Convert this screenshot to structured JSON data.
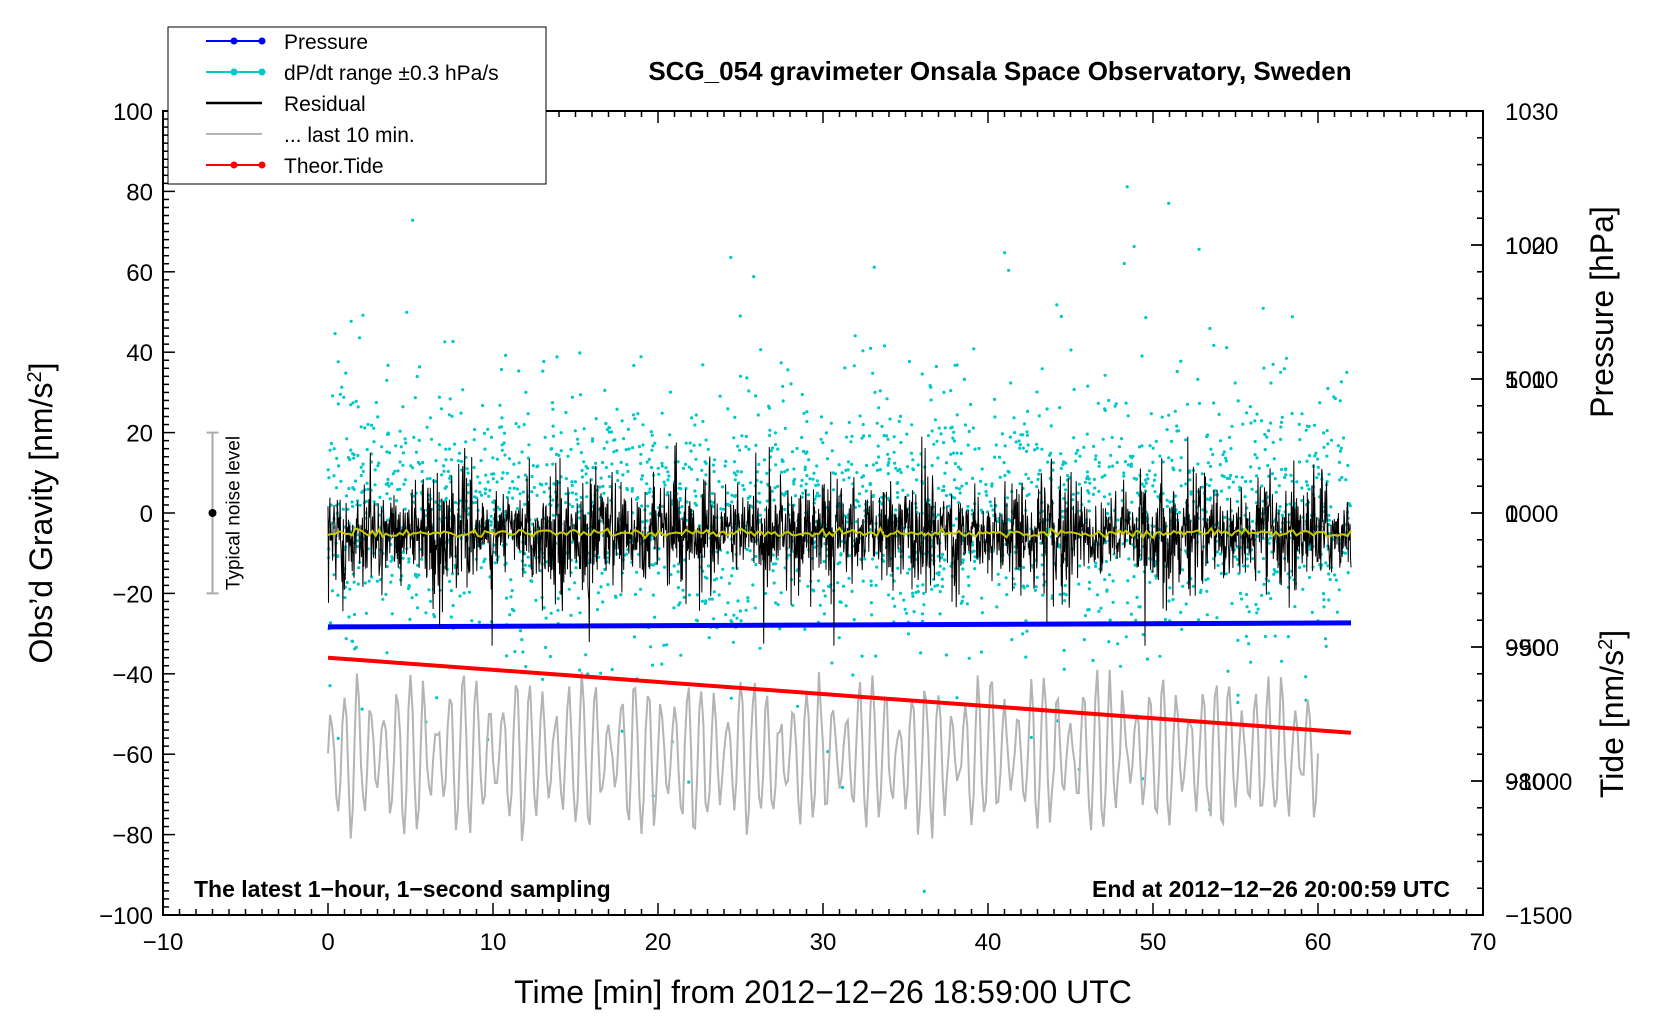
{
  "chart_data": {
    "type": "line",
    "title": "SCG_054 gravimeter Onsala Space Observatory, Sweden",
    "xlabel": "Time [min] from 2012−12−26 18:59:00 UTC",
    "ylabel_left_main": "Obs’d Gravity [nm/s",
    "ylabel_left_sup": "2",
    "ylabel_left_end": "]",
    "ylabel_right_top": "Pressure [hPa]",
    "ylabel_right_bottom_main": "Tide [nm/s",
    "ylabel_right_bottom_sup": "2",
    "ylabel_right_bottom_end": "]",
    "xlim": [
      -10,
      70
    ],
    "ylim": [
      -100,
      100
    ],
    "pressure_lim": [
      970,
      1030
    ],
    "tide_lim": [
      -1500,
      1500
    ],
    "x_ticks": [
      "−10",
      "0",
      "10",
      "20",
      "30",
      "40",
      "50",
      "60",
      "70"
    ],
    "x_tick_values": [
      -10,
      0,
      10,
      20,
      30,
      40,
      50,
      60,
      70
    ],
    "y_ticks": [
      "100",
      "80",
      "60",
      "40",
      "20",
      "0",
      "−20",
      "−40",
      "−60",
      "−80",
      "−100"
    ],
    "y_tick_values": [
      100,
      80,
      60,
      40,
      20,
      0,
      -20,
      -40,
      -60,
      -80,
      -100
    ],
    "pressure_ticks": [
      "1030",
      "1020",
      "1010",
      "1000",
      "990",
      "980"
    ],
    "pressure_tick_values": [
      1030,
      1020,
      1010,
      1000,
      990,
      980
    ],
    "tide_ticks": [
      "1000",
      "500",
      "0",
      "−500",
      "−1000",
      "−1500"
    ],
    "tide_tick_values": [
      1000,
      500,
      0,
      -500,
      -1000,
      -1500
    ],
    "legend": [
      {
        "label": "Pressure",
        "color": "#0000ff",
        "marker": true
      },
      {
        "label": "dP/dt range ±0.3 hPa/s",
        "color": "#00c8c8",
        "marker": true
      },
      {
        "label": "Residual",
        "color": "#000000",
        "marker": false
      },
      {
        "label": "... last 10 min.",
        "color": "#b4b4b4",
        "marker": false
      },
      {
        "label": "Theor.Tide",
        "color": "#ff0000",
        "marker": true
      }
    ],
    "legend_position": "top-left",
    "annotation_left": "The latest 1−hour, 1−second sampling",
    "annotation_right": "End at 2012−12−26 20:00:59 UTC",
    "noise_label": "Typical noise level",
    "noise_bar": {
      "x": -7,
      "center": 0,
      "half_range": 20
    },
    "series": [
      {
        "name": "Pressure",
        "axis": "pressure",
        "color": "#0000ff",
        "x_range": [
          0,
          62
        ],
        "y_start": 991.5,
        "y_end": 991.8
      },
      {
        "name": "dP/dt range ±0.3 hPa/s",
        "axis": "pressure",
        "color": "#00c8c8",
        "x_range": [
          0,
          62
        ],
        "center": 1000,
        "spread": 8
      },
      {
        "name": "Residual",
        "axis": "gravity",
        "color": "#000000",
        "x_range": [
          0,
          62
        ],
        "center": -5,
        "amplitude": 20
      },
      {
        "name": "Smoothed residual",
        "axis": "gravity",
        "color": "#c8c800",
        "x_range": [
          0,
          62
        ],
        "center": -5
      },
      {
        "name": "... last 10 min.",
        "axis": "gravity",
        "color": "#b4b4b4",
        "x_range": [
          0,
          60
        ],
        "center": -60,
        "amplitude": 20
      },
      {
        "name": "Theor.Tide",
        "axis": "tide",
        "color": "#ff0000",
        "x_range": [
          0,
          62
        ],
        "y_start": -540,
        "y_end": -820
      }
    ]
  }
}
